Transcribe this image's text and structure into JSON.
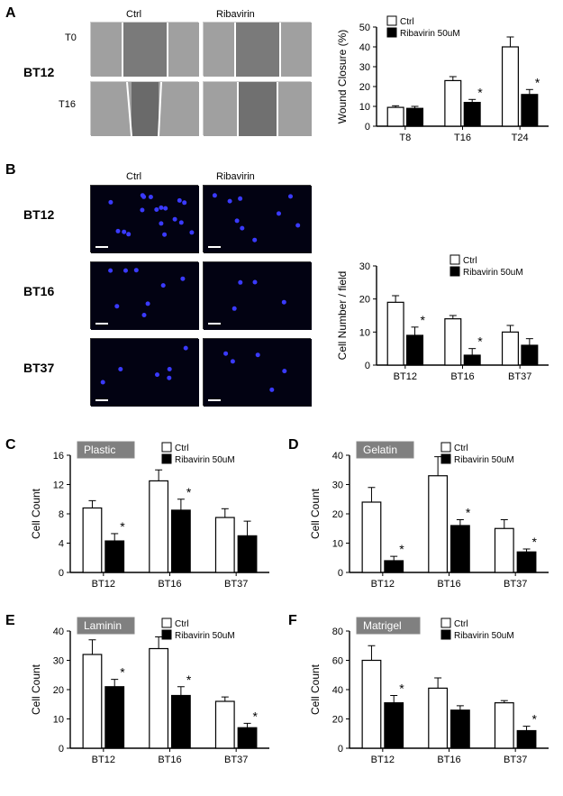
{
  "labels": {
    "A": "A",
    "B": "B",
    "C": "C",
    "D": "D",
    "E": "E",
    "F": "F",
    "BT12": "BT12",
    "BT16": "BT16",
    "BT37": "BT37",
    "T0": "T0",
    "T16lab": "T16",
    "Ctrl": "Ctrl",
    "Ribavirin": "Ribavirin",
    "Plastic": "Plastic",
    "Gelatin": "Gelatin",
    "Laminin": "Laminin",
    "Matrigel": "Matrigel"
  },
  "legend": {
    "ctrl": "Ctrl",
    "riba": "Ribavirin 50uM",
    "ctrl_fill": "#ffffff",
    "riba_fill": "#000000",
    "stroke": "#000000"
  },
  "panelA_chart": {
    "type": "bar",
    "ylabel": "Wound Closure (%)",
    "categories": [
      "T8",
      "T16",
      "T24"
    ],
    "ctrl": [
      9.5,
      23,
      40
    ],
    "riba": [
      9,
      12,
      16
    ],
    "ctrl_err": [
      0.8,
      2,
      5
    ],
    "riba_err": [
      1,
      1.5,
      2.5
    ],
    "sig": [
      false,
      true,
      true
    ],
    "ylim": [
      0,
      50
    ],
    "ytick_step": 10,
    "bar_stroke": "#000000",
    "grid_color": "#000000",
    "label_fontsize": 11
  },
  "panelB_chart": {
    "type": "bar",
    "ylabel": "Cell Number / field",
    "categories": [
      "BT12",
      "BT16",
      "BT37"
    ],
    "ctrl": [
      19,
      14,
      10
    ],
    "riba": [
      9,
      3,
      6
    ],
    "ctrl_err": [
      2,
      1,
      2
    ],
    "riba_err": [
      2.5,
      2,
      2
    ],
    "sig": [
      true,
      true,
      false
    ],
    "ylim": [
      0,
      30
    ],
    "ytick_step": 10,
    "label_fontsize": 11
  },
  "panelC_chart": {
    "type": "bar",
    "ylabel": "Cell Count",
    "surface": "Plastic",
    "categories": [
      "BT12",
      "BT16",
      "BT37"
    ],
    "ctrl": [
      8.8,
      12.5,
      7.5
    ],
    "riba": [
      4.3,
      8.5,
      5
    ],
    "ctrl_err": [
      1,
      1.5,
      1.2
    ],
    "riba_err": [
      1,
      1.5,
      2
    ],
    "sig": [
      true,
      true,
      false
    ],
    "ylim": [
      0,
      16
    ],
    "ytick_step": 4,
    "label_fontsize": 11
  },
  "panelD_chart": {
    "type": "bar",
    "ylabel": "Cell Count",
    "surface": "Gelatin",
    "categories": [
      "BT12",
      "BT16",
      "BT37"
    ],
    "ctrl": [
      24,
      33,
      15
    ],
    "riba": [
      4,
      16,
      7
    ],
    "ctrl_err": [
      5,
      6.5,
      3
    ],
    "riba_err": [
      1.5,
      2,
      1
    ],
    "sig": [
      true,
      true,
      true
    ],
    "ylim": [
      0,
      40
    ],
    "ytick_step": 10,
    "label_fontsize": 11
  },
  "panelE_chart": {
    "type": "bar",
    "ylabel": "Cell Count",
    "surface": "Laminin",
    "categories": [
      "BT12",
      "BT16",
      "BT37"
    ],
    "ctrl": [
      32,
      34,
      16
    ],
    "riba": [
      21,
      18,
      7
    ],
    "ctrl_err": [
      5,
      4,
      1.5
    ],
    "riba_err": [
      2.5,
      3,
      1.5
    ],
    "sig": [
      true,
      true,
      true
    ],
    "ylim": [
      0,
      40
    ],
    "ytick_step": 10,
    "label_fontsize": 11
  },
  "panelF_chart": {
    "type": "bar",
    "ylabel": "Cell Count",
    "surface": "Matrigel",
    "categories": [
      "BT12",
      "BT16",
      "BT37"
    ],
    "ctrl": [
      60,
      41,
      31
    ],
    "riba": [
      31,
      26,
      12
    ],
    "ctrl_err": [
      10,
      7,
      1.5
    ],
    "riba_err": [
      5,
      3,
      3
    ],
    "sig": [
      true,
      false,
      true
    ],
    "ylim": [
      0,
      80
    ],
    "ytick_step": 20,
    "label_fontsize": 11
  },
  "colors": {
    "micrograph_gray": "#8f8f8f",
    "fluor_bg": "#020212",
    "fluor_dot": "#3a3aff",
    "scratch_line": "#ffffff"
  }
}
